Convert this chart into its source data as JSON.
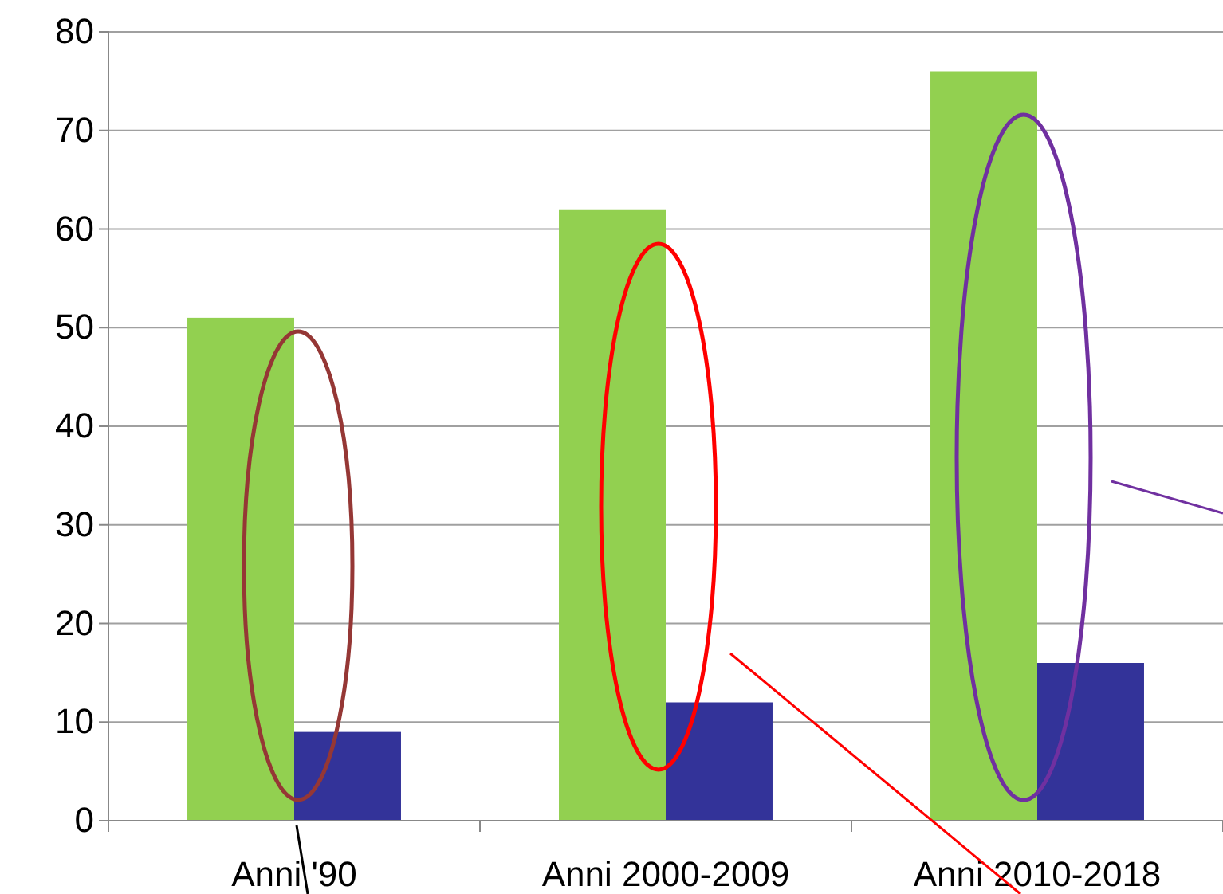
{
  "chart_data": {
    "type": "bar",
    "categories": [
      "Anni '90",
      "Anni 2000-2009",
      "Anni 2010-2018"
    ],
    "series": [
      {
        "color": "#92d050",
        "values": [
          51,
          62,
          76
        ]
      },
      {
        "color": "#333399",
        "values": [
          9,
          12,
          16
        ]
      }
    ],
    "ylim": [
      0,
      80
    ],
    "yticks": [
      0,
      10,
      20,
      30,
      40,
      50,
      60,
      70,
      80
    ],
    "grid": "y"
  }
}
